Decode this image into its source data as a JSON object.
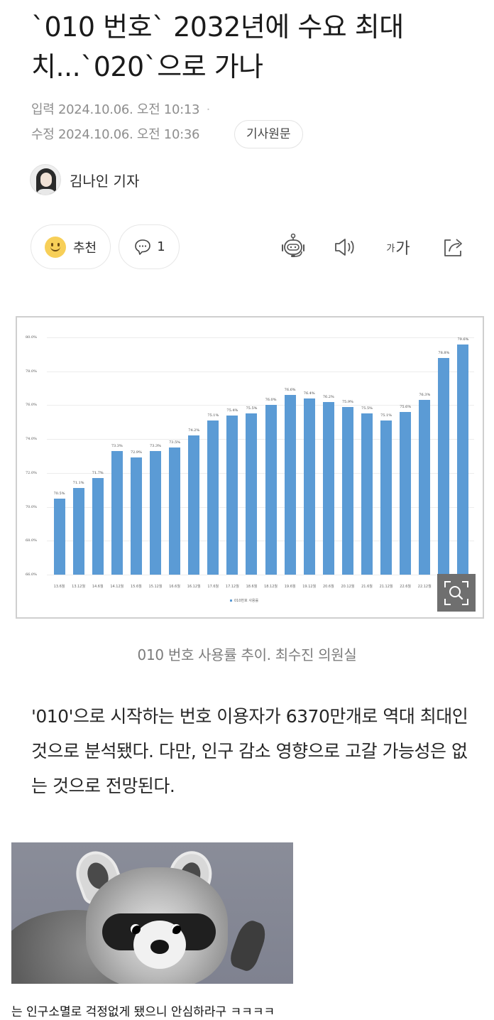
{
  "article": {
    "headline": "`010 번호` 2032년에 수요 최대치...`020`으로 가나",
    "input_label": "입력",
    "input_datetime": "2024.10.06. 오전 10:13",
    "modified_label": "수정",
    "modified_datetime": "2024.10.06. 오전 10:36",
    "original_button": "기사원문",
    "author": "김나인 기자",
    "recommend_label": "추천",
    "comment_count": "1",
    "font_size_small": "가",
    "font_size_large": "가",
    "figure_caption": "010 번호 사용률 추이. 최수진 의원실",
    "body": "'010'으로 시작하는 번호 이용자가 6370만개로 역대 최대인 것으로 분석됐다. 다만, 인구 감소 영향으로 고갈 가능성은 없는 것으로 전망된다."
  },
  "icons": {
    "recommend": "smiley-icon",
    "comment": "speech-bubble-icon",
    "summary_bot": "robot-icon",
    "text_to_speech": "speaker-icon",
    "font_size": "font-size-icon",
    "share": "share-icon",
    "image_zoom": "magnify-icon"
  },
  "meme": {
    "image_alt": "raccoon waving",
    "caption": "는 인구소멸로 걱정없게 됐으니 안심하라구 ㅋㅋㅋㅋ"
  },
  "colors": {
    "bar": "#5b9bd5",
    "text_primary": "#1a1a1a",
    "text_meta": "#8e8e8e"
  },
  "chart_data": {
    "type": "bar",
    "title": "",
    "xlabel": "",
    "ylabel": "",
    "legend": [
      "010번호 사용률"
    ],
    "legend_position": "bottom",
    "grid": true,
    "ylim": [
      66.0,
      80.0
    ],
    "yticks": [
      "66.0%",
      "68.0%",
      "70.0%",
      "72.0%",
      "74.0%",
      "76.0%",
      "78.0%",
      "80.0%"
    ],
    "categories": [
      "13.6월",
      "13.12월",
      "14.6월",
      "14.12월",
      "15.6월",
      "15.12월",
      "16.6월",
      "16.12월",
      "17.6월",
      "17.12월",
      "18.6월",
      "18.12월",
      "19.6월",
      "19.12월",
      "20.6월",
      "20.12월",
      "21.6월",
      "21.12월",
      "22.6월",
      "22.12월",
      "23.6월",
      "23.12월"
    ],
    "series": [
      {
        "name": "010번호 사용률",
        "values": [
          70.5,
          71.1,
          71.7,
          73.3,
          72.9,
          73.3,
          73.5,
          74.2,
          75.1,
          75.4,
          75.5,
          76.0,
          76.6,
          76.4,
          76.2,
          75.9,
          75.5,
          75.1,
          75.6,
          76.3,
          78.8,
          79.6
        ],
        "labels": [
          "70.5%",
          "71.1%",
          "71.7%",
          "73.3%",
          "72.9%",
          "73.3%",
          "73.5%",
          "74.2%",
          "75.1%",
          "75.4%",
          "75.5%",
          "76.0%",
          "76.6%",
          "76.4%",
          "76.2%",
          "75.9%",
          "75.5%",
          "75.1%",
          "75.6%",
          "76.3%",
          "78.8%",
          "79.6%"
        ]
      }
    ]
  }
}
